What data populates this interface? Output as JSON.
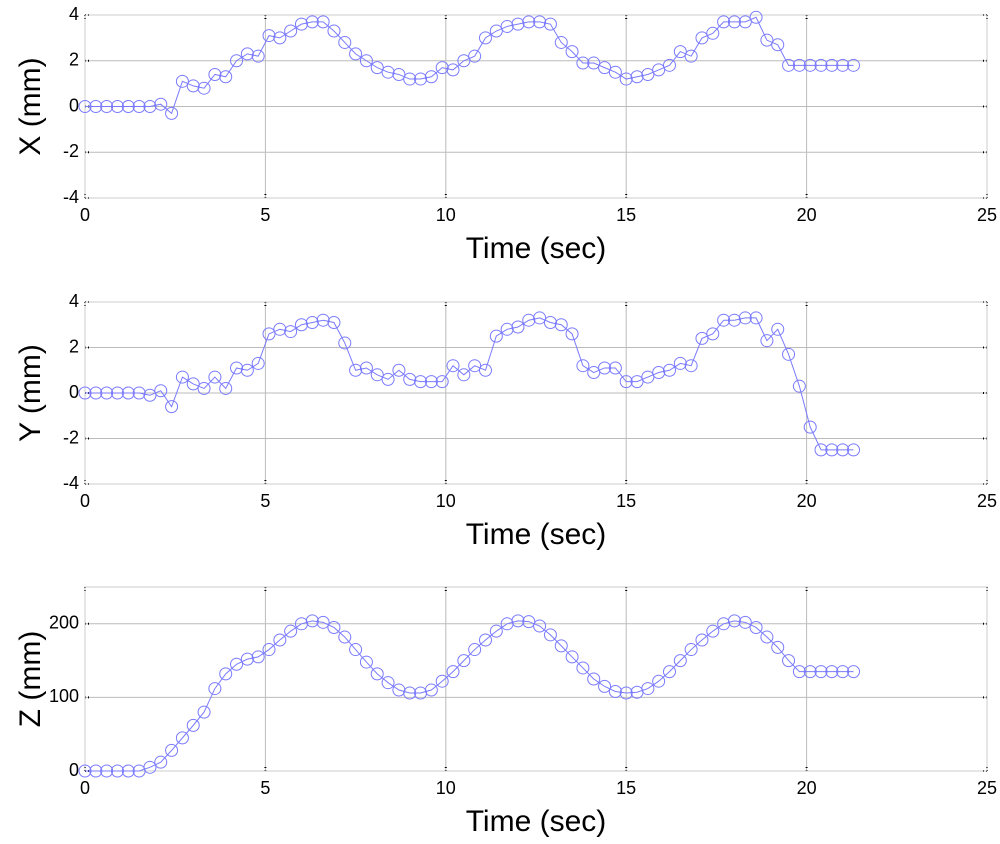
{
  "chart_data": [
    {
      "type": "line",
      "xlabel": "Time (sec)",
      "ylabel": "X (mm)",
      "grid": true,
      "marker": "circle",
      "xlim": [
        0,
        25
      ],
      "xticks": [
        0,
        5,
        10,
        15,
        20,
        25
      ],
      "ylim": [
        -4,
        4
      ],
      "yticks": [
        -4,
        -2,
        0,
        2,
        4
      ],
      "x": [
        0,
        0.3,
        0.6,
        0.9,
        1.2,
        1.5,
        1.8,
        2.1,
        2.4,
        2.7,
        3.0,
        3.3,
        3.6,
        3.9,
        4.2,
        4.5,
        4.8,
        5.1,
        5.4,
        5.7,
        6.0,
        6.3,
        6.6,
        6.9,
        7.2,
        7.5,
        7.8,
        8.1,
        8.4,
        8.7,
        9.0,
        9.3,
        9.6,
        9.9,
        10.2,
        10.5,
        10.8,
        11.1,
        11.4,
        11.7,
        12.0,
        12.3,
        12.6,
        12.9,
        13.2,
        13.5,
        13.8,
        14.1,
        14.4,
        14.7,
        15.0,
        15.3,
        15.6,
        15.9,
        16.2,
        16.5,
        16.8,
        17.1,
        17.4,
        17.7,
        18.0,
        18.3,
        18.6,
        18.9,
        19.2,
        19.5,
        19.8,
        20.1,
        20.4,
        20.7,
        21.0,
        21.3
      ],
      "series": [
        {
          "color": "#7a7aff",
          "values": [
            0,
            0,
            0,
            0,
            0,
            0,
            0,
            0.1,
            -0.3,
            1.1,
            0.9,
            0.8,
            1.4,
            1.3,
            2.0,
            2.3,
            2.2,
            3.1,
            3.0,
            3.3,
            3.6,
            3.7,
            3.7,
            3.3,
            2.8,
            2.3,
            2.0,
            1.7,
            1.5,
            1.4,
            1.2,
            1.2,
            1.3,
            1.7,
            1.6,
            2.0,
            2.2,
            3.0,
            3.3,
            3.5,
            3.6,
            3.7,
            3.7,
            3.6,
            2.8,
            2.4,
            1.9,
            1.9,
            1.7,
            1.5,
            1.2,
            1.3,
            1.4,
            1.6,
            1.8,
            2.4,
            2.2,
            3.0,
            3.2,
            3.7,
            3.7,
            3.7,
            3.9,
            2.9,
            2.7,
            1.8,
            1.8,
            1.8,
            1.8,
            1.8,
            1.8,
            1.8
          ]
        }
      ]
    },
    {
      "type": "line",
      "xlabel": "Time (sec)",
      "ylabel": "Y (mm)",
      "grid": true,
      "marker": "circle",
      "xlim": [
        0,
        25
      ],
      "xticks": [
        0,
        5,
        10,
        15,
        20,
        25
      ],
      "ylim": [
        -4,
        4
      ],
      "yticks": [
        -4,
        -2,
        0,
        2,
        4
      ],
      "x": [
        0,
        0.3,
        0.6,
        0.9,
        1.2,
        1.5,
        1.8,
        2.1,
        2.4,
        2.7,
        3.0,
        3.3,
        3.6,
        3.9,
        4.2,
        4.5,
        4.8,
        5.1,
        5.4,
        5.7,
        6.0,
        6.3,
        6.6,
        6.9,
        7.2,
        7.5,
        7.8,
        8.1,
        8.4,
        8.7,
        9.0,
        9.3,
        9.6,
        9.9,
        10.2,
        10.5,
        10.8,
        11.1,
        11.4,
        11.7,
        12.0,
        12.3,
        12.6,
        12.9,
        13.2,
        13.5,
        13.8,
        14.1,
        14.4,
        14.7,
        15.0,
        15.3,
        15.6,
        15.9,
        16.2,
        16.5,
        16.8,
        17.1,
        17.4,
        17.7,
        18.0,
        18.3,
        18.6,
        18.9,
        19.2,
        19.5,
        19.8,
        20.1,
        20.4,
        20.7,
        21.0,
        21.3
      ],
      "series": [
        {
          "color": "#7a7aff",
          "values": [
            0,
            0,
            0,
            0,
            0,
            0,
            -0.1,
            0.1,
            -0.6,
            0.7,
            0.4,
            0.2,
            0.7,
            0.2,
            1.1,
            1.0,
            1.3,
            2.6,
            2.8,
            2.7,
            3.0,
            3.1,
            3.2,
            3.1,
            2.2,
            1.0,
            1.1,
            0.8,
            0.6,
            1.0,
            0.6,
            0.5,
            0.5,
            0.5,
            1.2,
            0.8,
            1.2,
            1.0,
            2.5,
            2.8,
            2.9,
            3.2,
            3.3,
            3.1,
            3.0,
            2.6,
            1.2,
            0.9,
            1.1,
            1.1,
            0.5,
            0.5,
            0.7,
            0.9,
            1.0,
            1.3,
            1.2,
            2.4,
            2.6,
            3.2,
            3.2,
            3.3,
            3.3,
            2.3,
            2.8,
            1.7,
            0.3,
            -1.5,
            -2.5,
            -2.5,
            -2.5,
            -2.5
          ]
        }
      ]
    },
    {
      "type": "line",
      "xlabel": "Time (sec)",
      "ylabel": "Z (mm)",
      "grid": true,
      "marker": "circle",
      "xlim": [
        0,
        25
      ],
      "xticks": [
        0,
        5,
        10,
        15,
        20,
        25
      ],
      "ylim": [
        0,
        250
      ],
      "yticks": [
        0,
        100,
        200
      ],
      "x": [
        0,
        0.3,
        0.6,
        0.9,
        1.2,
        1.5,
        1.8,
        2.1,
        2.4,
        2.7,
        3.0,
        3.3,
        3.6,
        3.9,
        4.2,
        4.5,
        4.8,
        5.1,
        5.4,
        5.7,
        6.0,
        6.3,
        6.6,
        6.9,
        7.2,
        7.5,
        7.8,
        8.1,
        8.4,
        8.7,
        9.0,
        9.3,
        9.6,
        9.9,
        10.2,
        10.5,
        10.8,
        11.1,
        11.4,
        11.7,
        12.0,
        12.3,
        12.6,
        12.9,
        13.2,
        13.5,
        13.8,
        14.1,
        14.4,
        14.7,
        15.0,
        15.3,
        15.6,
        15.9,
        16.2,
        16.5,
        16.8,
        17.1,
        17.4,
        17.7,
        18.0,
        18.3,
        18.6,
        18.9,
        19.2,
        19.5,
        19.8,
        20.1,
        20.4,
        20.7,
        21.0,
        21.3
      ],
      "series": [
        {
          "color": "#7a7aff",
          "values": [
            0,
            0,
            0,
            0,
            0,
            0,
            5,
            12,
            28,
            45,
            62,
            80,
            112,
            132,
            145,
            152,
            155,
            165,
            178,
            190,
            200,
            204,
            202,
            195,
            182,
            165,
            148,
            132,
            120,
            110,
            106,
            106,
            110,
            122,
            135,
            150,
            165,
            178,
            190,
            200,
            204,
            203,
            197,
            185,
            170,
            155,
            140,
            125,
            115,
            108,
            106,
            107,
            112,
            122,
            135,
            150,
            165,
            178,
            190,
            200,
            204,
            202,
            195,
            182,
            168,
            150,
            135,
            135,
            135,
            135,
            135,
            135
          ]
        }
      ]
    }
  ]
}
